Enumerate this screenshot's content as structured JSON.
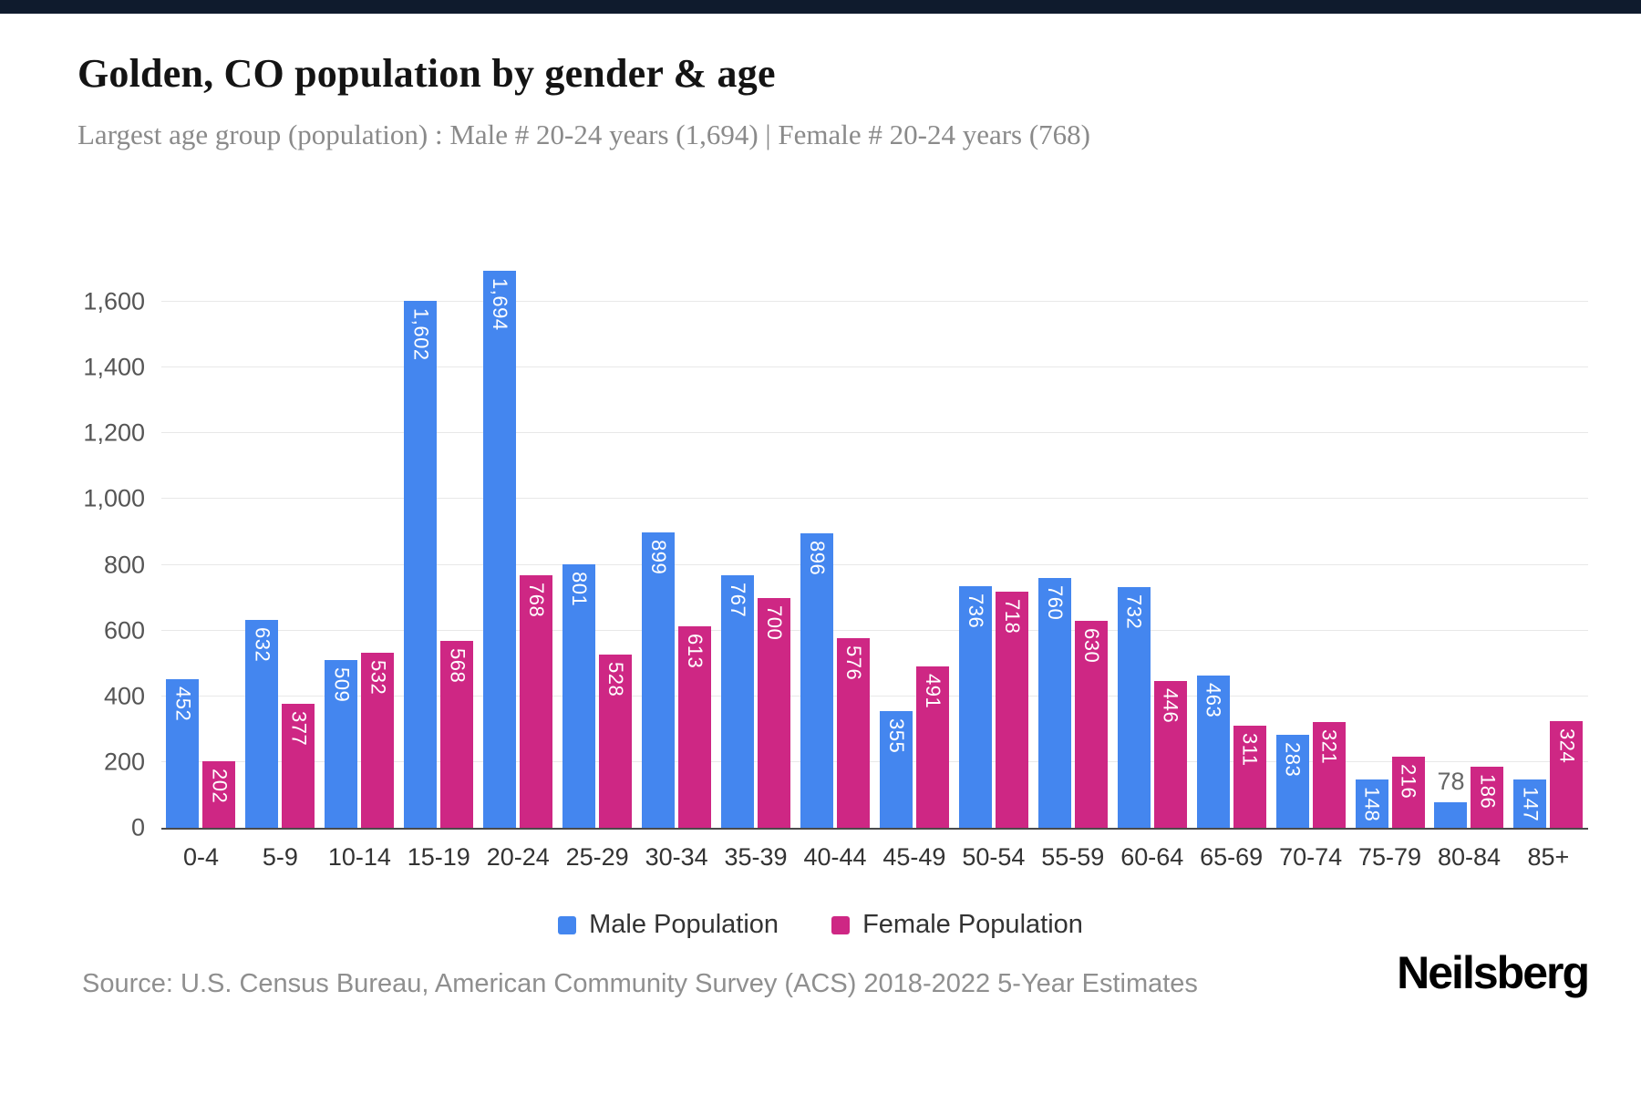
{
  "top_bar_color": "#0f1b2d",
  "header": {
    "title": "Golden, CO population by gender & age",
    "subtitle": "Largest age group (population) : Male # 20-24 years (1,694) | Female # 20-24 years (768)"
  },
  "chart_data": {
    "type": "bar",
    "title": "Golden, CO population by gender & age",
    "categories": [
      "0-4",
      "5-9",
      "10-14",
      "15-19",
      "20-24",
      "25-29",
      "30-34",
      "35-39",
      "40-44",
      "45-49",
      "50-54",
      "55-59",
      "60-64",
      "65-69",
      "70-74",
      "75-79",
      "80-84",
      "85+"
    ],
    "series": [
      {
        "name": "Male Population",
        "color": "#4486ef",
        "values": [
          452,
          632,
          509,
          1602,
          1694,
          801,
          899,
          767,
          896,
          355,
          736,
          760,
          732,
          463,
          283,
          148,
          78,
          147
        ]
      },
      {
        "name": "Female Population",
        "color": "#ce2784",
        "values": [
          202,
          377,
          532,
          568,
          768,
          528,
          613,
          700,
          576,
          491,
          718,
          630,
          446,
          311,
          321,
          216,
          186,
          324
        ]
      }
    ],
    "xlabel": "",
    "ylabel": "",
    "ylim": [
      0,
      1700
    ],
    "yticks": [
      0,
      200,
      400,
      600,
      800,
      1000,
      1200,
      1400,
      1600
    ],
    "grid": true,
    "legend_position": "bottom",
    "value_labels": "rotated-inside-top",
    "outside_label_threshold": 100,
    "outside_label_color": "#666666",
    "inside_label_color": "#ffffff"
  },
  "footer": {
    "source": "Source: U.S. Census Bureau, American Community Survey (ACS) 2018-2022 5-Year Estimates",
    "brand": "Neilsberg"
  }
}
